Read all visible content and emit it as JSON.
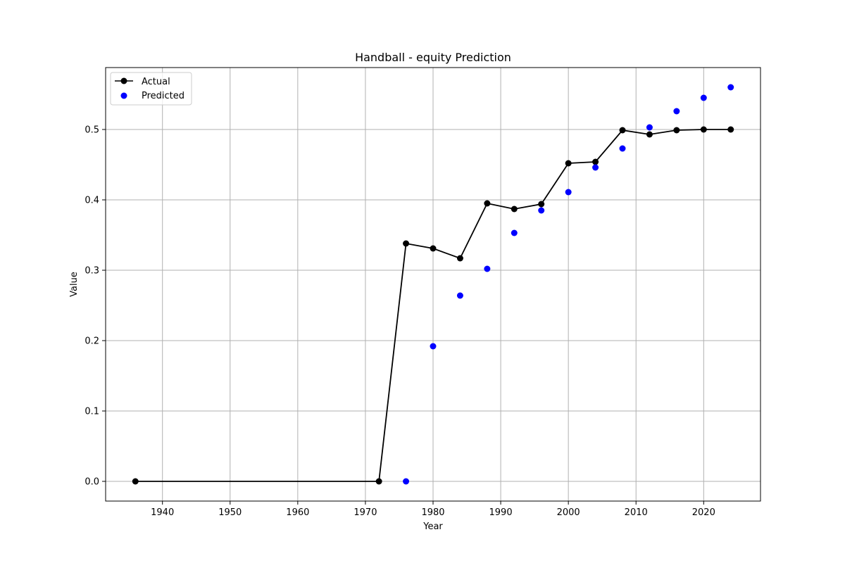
{
  "chart_data": {
    "type": "line",
    "title": "Handball - equity Prediction",
    "xlabel": "Year",
    "ylabel": "Value",
    "xlim": [
      1931.6,
      2028.4
    ],
    "ylim": [
      -0.028,
      0.588
    ],
    "xticks": [
      1940,
      1950,
      1960,
      1970,
      1980,
      1990,
      2000,
      2010,
      2020
    ],
    "yticks": [
      "0.0",
      "0.1",
      "0.2",
      "0.3",
      "0.4",
      "0.5"
    ],
    "grid": true,
    "legend_position": "top-left",
    "series": [
      {
        "name": "Actual",
        "style": "line-with-markers",
        "color": "#000000",
        "x": [
          1936,
          1972,
          1976,
          1980,
          1984,
          1988,
          1992,
          1996,
          2000,
          2004,
          2008,
          2012,
          2016,
          2020,
          2024
        ],
        "values": [
          0.0,
          0.0,
          0.338,
          0.331,
          0.317,
          0.395,
          0.387,
          0.394,
          0.452,
          0.454,
          0.499,
          0.493,
          0.499,
          0.5,
          0.5
        ]
      },
      {
        "name": "Predicted",
        "style": "scatter",
        "color": "#0000ff",
        "x": [
          1976,
          1980,
          1984,
          1988,
          1992,
          1996,
          2000,
          2004,
          2008,
          2012,
          2016,
          2020,
          2024
        ],
        "values": [
          0.0,
          0.192,
          0.264,
          0.302,
          0.353,
          0.385,
          0.411,
          0.446,
          0.473,
          0.503,
          0.526,
          0.545,
          0.56
        ]
      }
    ]
  }
}
